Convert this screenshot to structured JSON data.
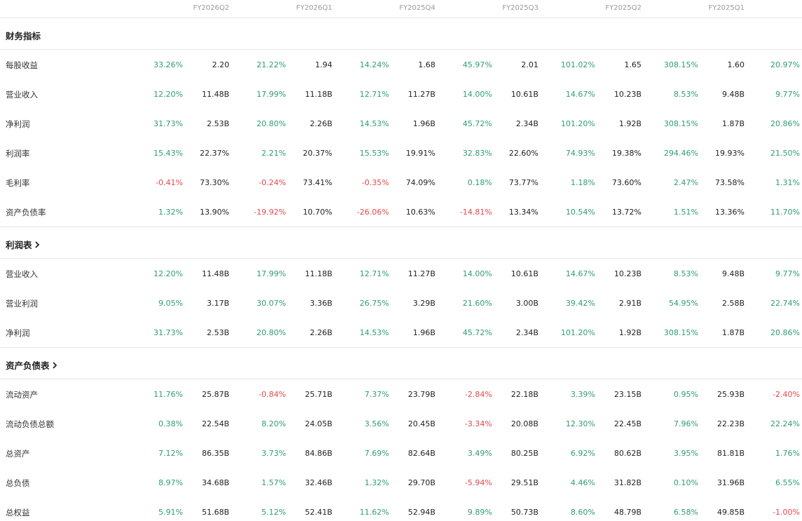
{
  "columns": [
    "FY2026Q2",
    "FY2026Q1",
    "FY2025Q4",
    "FY2025Q3",
    "FY2025Q2",
    "FY2025Q1"
  ],
  "sections": [
    {
      "title": "财务指标",
      "link": false,
      "rows": [
        {
          "label": "每股收益",
          "cells": [
            [
              "33.26%",
              "2.20"
            ],
            [
              "21.22%",
              "1.94"
            ],
            [
              "14.24%",
              "1.68"
            ],
            [
              "45.97%",
              "2.01"
            ],
            [
              "101.02%",
              "1.65"
            ],
            [
              "308.15%",
              "1.60"
            ],
            [
              "20.97%",
              ""
            ]
          ]
        },
        {
          "label": "营业收入",
          "cells": [
            [
              "12.20%",
              "11.48B"
            ],
            [
              "17.99%",
              "11.18B"
            ],
            [
              "12.71%",
              "11.27B"
            ],
            [
              "14.00%",
              "10.61B"
            ],
            [
              "14.67%",
              "10.23B"
            ],
            [
              "8.53%",
              "9.48B"
            ],
            [
              "9.77%",
              ""
            ]
          ]
        },
        {
          "label": "净利润",
          "cells": [
            [
              "31.73%",
              "2.53B"
            ],
            [
              "20.80%",
              "2.26B"
            ],
            [
              "14.53%",
              "1.96B"
            ],
            [
              "45.72%",
              "2.34B"
            ],
            [
              "101.20%",
              "1.92B"
            ],
            [
              "308.15%",
              "1.87B"
            ],
            [
              "20.86%",
              ""
            ]
          ]
        },
        {
          "label": "利润率",
          "cells": [
            [
              "15.43%",
              "22.37%"
            ],
            [
              "2.21%",
              "20.37%"
            ],
            [
              "15.53%",
              "19.91%"
            ],
            [
              "32.83%",
              "22.60%"
            ],
            [
              "74.93%",
              "19.38%"
            ],
            [
              "294.46%",
              "19.93%"
            ],
            [
              "21.50%",
              ""
            ]
          ]
        },
        {
          "label": "毛利率",
          "cells": [
            [
              "-0.41%",
              "73.30%"
            ],
            [
              "-0.24%",
              "73.41%"
            ],
            [
              "-0.35%",
              "74.09%"
            ],
            [
              "0.18%",
              "73.77%"
            ],
            [
              "1.18%",
              "73.60%"
            ],
            [
              "2.47%",
              "73.58%"
            ],
            [
              "1.31%",
              ""
            ]
          ]
        },
        {
          "label": "资产负债率",
          "cells": [
            [
              "1.32%",
              "13.90%"
            ],
            [
              "-19.92%",
              "10.70%"
            ],
            [
              "-26.06%",
              "10.63%"
            ],
            [
              "-14.81%",
              "13.34%"
            ],
            [
              "10.54%",
              "13.72%"
            ],
            [
              "1.51%",
              "13.36%"
            ],
            [
              "11.70%",
              ""
            ]
          ]
        }
      ]
    },
    {
      "title": "利润表",
      "link": true,
      "rows": [
        {
          "label": "营业收入",
          "cells": [
            [
              "12.20%",
              "11.48B"
            ],
            [
              "17.99%",
              "11.18B"
            ],
            [
              "12.71%",
              "11.27B"
            ],
            [
              "14.00%",
              "10.61B"
            ],
            [
              "14.67%",
              "10.23B"
            ],
            [
              "8.53%",
              "9.48B"
            ],
            [
              "9.77%",
              ""
            ]
          ]
        },
        {
          "label": "营业利润",
          "cells": [
            [
              "9.05%",
              "3.17B"
            ],
            [
              "30.07%",
              "3.36B"
            ],
            [
              "26.75%",
              "3.29B"
            ],
            [
              "21.60%",
              "3.00B"
            ],
            [
              "39.42%",
              "2.91B"
            ],
            [
              "54.95%",
              "2.58B"
            ],
            [
              "22.74%",
              ""
            ]
          ]
        },
        {
          "label": "净利润",
          "cells": [
            [
              "31.73%",
              "2.53B"
            ],
            [
              "20.80%",
              "2.26B"
            ],
            [
              "14.53%",
              "1.96B"
            ],
            [
              "45.72%",
              "2.34B"
            ],
            [
              "101.20%",
              "1.92B"
            ],
            [
              "308.15%",
              "1.87B"
            ],
            [
              "20.86%",
              ""
            ]
          ]
        }
      ]
    },
    {
      "title": "资产负债表",
      "link": true,
      "rows": [
        {
          "label": "流动资产",
          "cells": [
            [
              "11.76%",
              "25.87B"
            ],
            [
              "-0.84%",
              "25.71B"
            ],
            [
              "7.37%",
              "23.79B"
            ],
            [
              "-2.84%",
              "22.18B"
            ],
            [
              "3.39%",
              "23.15B"
            ],
            [
              "0.95%",
              "25.93B"
            ],
            [
              "-2.40%",
              ""
            ]
          ]
        },
        {
          "label": "流动负债总额",
          "cells": [
            [
              "0.38%",
              "22.54B"
            ],
            [
              "8.20%",
              "24.05B"
            ],
            [
              "3.56%",
              "20.45B"
            ],
            [
              "-3.34%",
              "20.08B"
            ],
            [
              "12.30%",
              "22.45B"
            ],
            [
              "7.96%",
              "22.23B"
            ],
            [
              "22.24%",
              ""
            ]
          ]
        },
        {
          "label": "总资产",
          "cells": [
            [
              "7.12%",
              "86.35B"
            ],
            [
              "3.73%",
              "84.86B"
            ],
            [
              "7.69%",
              "82.64B"
            ],
            [
              "3.49%",
              "80.25B"
            ],
            [
              "6.92%",
              "80.62B"
            ],
            [
              "3.95%",
              "81.81B"
            ],
            [
              "1.76%",
              ""
            ]
          ]
        },
        {
          "label": "总负债",
          "cells": [
            [
              "8.97%",
              "34.68B"
            ],
            [
              "1.57%",
              "32.46B"
            ],
            [
              "1.32%",
              "29.70B"
            ],
            [
              "-5.94%",
              "29.51B"
            ],
            [
              "4.46%",
              "31.82B"
            ],
            [
              "0.10%",
              "31.96B"
            ],
            [
              "6.55%",
              ""
            ]
          ]
        },
        {
          "label": "总权益",
          "cells": [
            [
              "5.91%",
              "51.68B"
            ],
            [
              "5.12%",
              "52.41B"
            ],
            [
              "11.62%",
              "52.94B"
            ],
            [
              "9.89%",
              "50.73B"
            ],
            [
              "8.60%",
              "48.79B"
            ],
            [
              "6.58%",
              "49.85B"
            ],
            [
              "-1.00%",
              ""
            ]
          ]
        }
      ]
    }
  ],
  "colors": {
    "positive": "#2e9e6e",
    "negative": "#e5484d",
    "value": "#222222",
    "header": "#9a9a9a"
  }
}
